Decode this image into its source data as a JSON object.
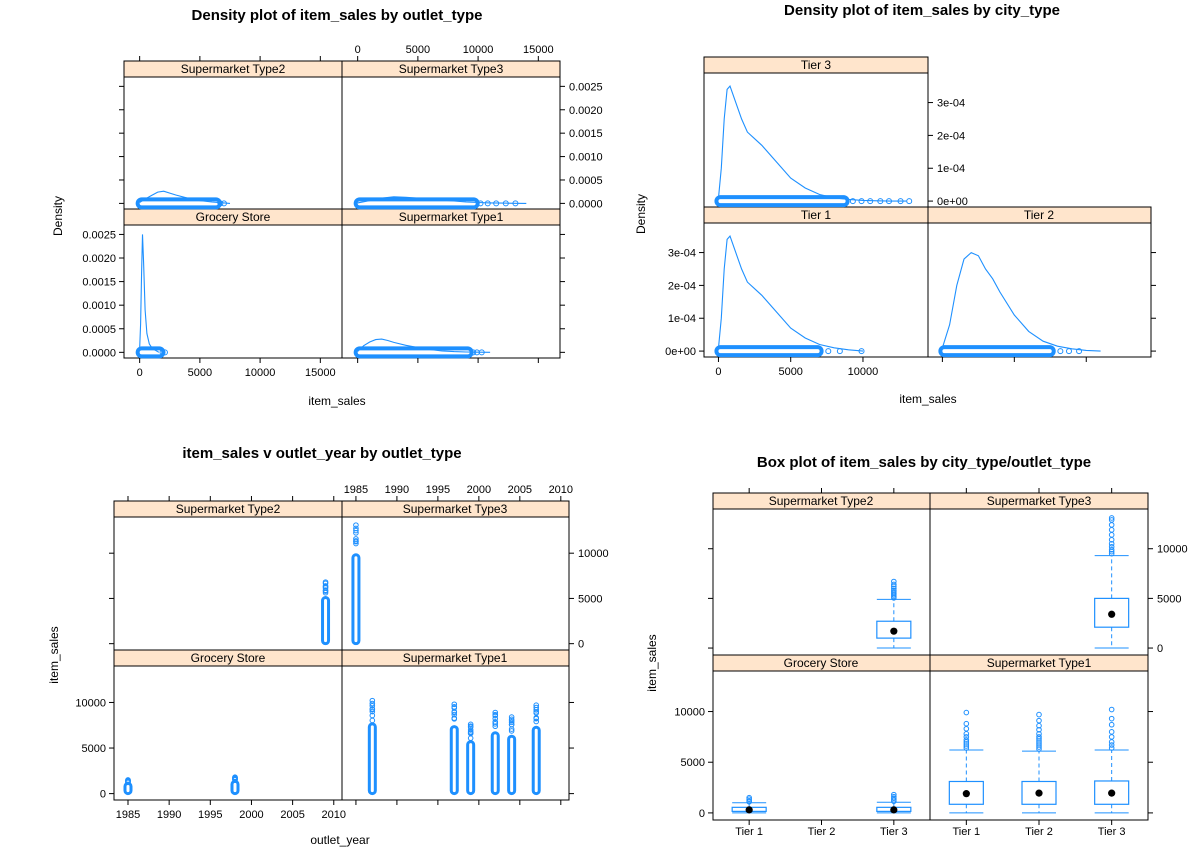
{
  "colors": {
    "series": "#1e90ff",
    "strip_bg": "#ffe5cc",
    "axis": "#000000"
  },
  "chart_data": [
    {
      "type": "area",
      "title": "Density plot of item_sales by outlet_type",
      "xlabel": "item_sales",
      "ylabel": "Density",
      "xlim": [
        -1300,
        16800
      ],
      "ylim": [
        -0.00012,
        0.0027
      ],
      "xticks": [
        0,
        5000,
        10000,
        15000
      ],
      "xtick_labels": [
        "0",
        "5000",
        "10000",
        "15000"
      ],
      "yticks": [
        0,
        0.0005,
        0.001,
        0.0015,
        0.002,
        0.0025
      ],
      "ytick_labels": [
        "0.0000",
        "0.0005",
        "0.0010",
        "0.0015",
        "0.0020",
        "0.0025"
      ],
      "panels": [
        {
          "strip": "Grocery Store",
          "curve_x": [
            0,
            80,
            160,
            240,
            330,
            450,
            600,
            800,
            1000,
            1200,
            1400,
            1600
          ],
          "curve_y": [
            0.0001,
            0.0006,
            0.0017,
            0.0025,
            0.0019,
            0.0009,
            0.0004,
            0.00018,
            0.0001,
            6e-05,
            3e-05,
            0
          ],
          "rug_min": 0,
          "rug_max": 1800,
          "outliers": [
            1900,
            2100
          ]
        },
        {
          "strip": "Supermarket Type1",
          "curve_x": [
            0,
            500,
            1000,
            1500,
            2000,
            2500,
            3000,
            4000,
            5000,
            6000,
            7000,
            8000,
            9000,
            10000,
            11000
          ],
          "curve_y": [
            2e-05,
            0.00014,
            0.00022,
            0.00027,
            0.00028,
            0.00025,
            0.00021,
            0.00015,
            0.0001,
            6e-05,
            3e-05,
            1.5e-05,
            7e-06,
            3e-06,
            0
          ],
          "rug_min": 0,
          "rug_max": 9300,
          "outliers": [
            9600,
            9900,
            10300
          ]
        },
        {
          "strip": "Supermarket Type2",
          "curve_x": [
            0,
            500,
            1000,
            1500,
            2000,
            2500,
            3000,
            4000,
            5000,
            6000,
            7000,
            7500
          ],
          "curve_y": [
            2e-05,
            0.0001,
            0.00017,
            0.00024,
            0.00026,
            0.00022,
            0.00018,
            0.00011,
            6e-05,
            3e-05,
            1e-05,
            0
          ],
          "rug_min": 0,
          "rug_max": 6500,
          "outliers": [
            6700,
            7000
          ]
        },
        {
          "strip": "Supermarket Type3",
          "curve_x": [
            0,
            1000,
            2000,
            3000,
            4000,
            5000,
            6000,
            7000,
            8000,
            9000,
            10000,
            11000,
            12000,
            13000,
            14000
          ],
          "curve_y": [
            1e-05,
            6e-05,
            0.00011,
            0.00014,
            0.00013,
            0.00011,
            9e-05,
            7e-05,
            5e-05,
            3e-05,
            1.8e-05,
            1e-05,
            5e-06,
            2e-06,
            0
          ],
          "rug_min": 0,
          "rug_max": 9800,
          "outliers": [
            10200,
            10800,
            11500,
            12300,
            13100
          ]
        }
      ]
    },
    {
      "type": "area",
      "title": "Density plot of item_sales by city_type",
      "xlabel": "item_sales",
      "ylabel": "Density",
      "xlim": [
        -1000,
        14500
      ],
      "ylim": [
        -1.8e-05,
        0.00039
      ],
      "xticks": [
        0,
        5000,
        10000
      ],
      "xtick_labels": [
        "0",
        "5000",
        "10000"
      ],
      "yticks": [
        0,
        0.0001,
        0.0002,
        0.0003
      ],
      "ytick_labels": [
        "0e+00",
        "1e-04",
        "2e-04",
        "3e-04"
      ],
      "panels": [
        {
          "strip": "Tier 1",
          "curve_x": [
            0,
            200,
            400,
            600,
            800,
            1200,
            1600,
            2000,
            2500,
            3000,
            4000,
            5000,
            6000,
            7000,
            8000,
            9000,
            10000
          ],
          "curve_y": [
            1e-05,
            0.0001,
            0.00025,
            0.00034,
            0.00035,
            0.0003,
            0.00025,
            0.00021,
            0.00019,
            0.00017,
            0.00012,
            7e-05,
            4e-05,
            2e-05,
            1e-05,
            4e-06,
            0
          ],
          "rug_min": 0,
          "rug_max": 7000,
          "outliers": [
            7600,
            8400,
            9900
          ]
        },
        {
          "strip": "Tier 2",
          "curve_x": [
            0,
            500,
            1000,
            1500,
            2000,
            2500,
            3000,
            3500,
            4000,
            5000,
            6000,
            7000,
            8000,
            9000,
            10000,
            11000
          ],
          "curve_y": [
            1e-05,
            8e-05,
            0.0002,
            0.00028,
            0.0003,
            0.00029,
            0.00025,
            0.00022,
            0.00018,
            0.00011,
            6e-05,
            3e-05,
            1.5e-05,
            7e-06,
            2e-06,
            0
          ],
          "rug_min": 0,
          "rug_max": 7600,
          "outliers": [
            8200,
            8800,
            9500
          ]
        },
        {
          "strip": "Tier 3",
          "curve_x": [
            0,
            200,
            400,
            600,
            800,
            1200,
            1600,
            2000,
            2500,
            3000,
            4000,
            5000,
            6000,
            7000,
            8000,
            9000,
            10000,
            11000,
            12000,
            13000
          ],
          "curve_y": [
            1e-05,
            0.0001,
            0.00025,
            0.00034,
            0.00035,
            0.0003,
            0.00025,
            0.00021,
            0.00019,
            0.00017,
            0.00012,
            7e-05,
            4e-05,
            2e-05,
            1e-05,
            5e-06,
            2e-06,
            1e-06,
            0,
            0
          ],
          "rug_min": 0,
          "rug_max": 8800,
          "outliers": [
            9300,
            9900,
            10500,
            11200,
            11800,
            12600,
            13200
          ]
        }
      ]
    },
    {
      "type": "scatter",
      "title": "item_sales v outlet_year by outlet_type",
      "xlabel": "outlet_year",
      "ylabel": "item_sales",
      "xlim": [
        1983.3,
        2011
      ],
      "ylim": [
        -700,
        14000
      ],
      "xticks": [
        1985,
        1990,
        1995,
        2000,
        2005,
        2010
      ],
      "xtick_labels": [
        "1985",
        "1990",
        "1995",
        "2000",
        "2005",
        "2010"
      ],
      "yticks": [
        0,
        5000,
        10000
      ],
      "ytick_labels": [
        "0",
        "5000",
        "10000"
      ],
      "panels": [
        {
          "strip": "Grocery Store",
          "columns": [
            {
              "x": 1985,
              "min": 0,
              "max": 1500
            },
            {
              "x": 1998,
              "min": 0,
              "max": 1800
            }
          ]
        },
        {
          "strip": "Supermarket Type1",
          "columns": [
            {
              "x": 1987,
              "min": 0,
              "max": 10200
            },
            {
              "x": 1997,
              "min": 0,
              "max": 9800
            },
            {
              "x": 1999,
              "min": 0,
              "max": 7600
            },
            {
              "x": 2002,
              "min": 0,
              "max": 8900
            },
            {
              "x": 2004,
              "min": 0,
              "max": 8400
            },
            {
              "x": 2007,
              "min": 0,
              "max": 9700
            }
          ]
        },
        {
          "strip": "Supermarket Type2",
          "columns": [
            {
              "x": 2009,
              "min": 0,
              "max": 6800
            }
          ]
        },
        {
          "strip": "Supermarket Type3",
          "columns": [
            {
              "x": 1985,
              "min": 0,
              "max": 13100
            }
          ]
        }
      ]
    },
    {
      "type": "box",
      "title": "Box plot of item_sales by city_type/outlet_type",
      "xlabel": "",
      "ylabel": "item_sales",
      "categories": [
        "Tier 1",
        "Tier 2",
        "Tier 3"
      ],
      "ylim": [
        -700,
        14000
      ],
      "yticks": [
        0,
        5000,
        10000
      ],
      "ytick_labels": [
        "0",
        "5000",
        "10000"
      ],
      "panels": [
        {
          "strip": "Grocery Store",
          "boxes": [
            {
              "cat": "Tier 1",
              "min": 0,
              "q1": 150,
              "median": 300,
              "q3": 550,
              "max": 1000,
              "outliers": [
                1100,
                1200,
                1350,
                1500
              ]
            },
            {
              "cat": "Tier 3",
              "min": 0,
              "q1": 150,
              "median": 300,
              "q3": 550,
              "max": 1050,
              "outliers": [
                1150,
                1300,
                1450,
                1600,
                1800
              ]
            }
          ]
        },
        {
          "strip": "Supermarket Type1",
          "boxes": [
            {
              "cat": "Tier 1",
              "min": 0,
              "q1": 850,
              "median": 1900,
              "q3": 3100,
              "max": 6200,
              "outliers": [
                6400,
                6600,
                6800,
                7000,
                7200,
                7500,
                7800,
                8300,
                8800,
                9900
              ]
            },
            {
              "cat": "Tier 2",
              "min": 0,
              "q1": 850,
              "median": 1950,
              "q3": 3100,
              "max": 6100,
              "outliers": [
                6300,
                6500,
                6700,
                6900,
                7100,
                7300,
                7500,
                7800,
                8200,
                8600,
                9100,
                9700
              ]
            },
            {
              "cat": "Tier 3",
              "min": 0,
              "q1": 850,
              "median": 1950,
              "q3": 3150,
              "max": 6200,
              "outliers": [
                6400,
                6700,
                7000,
                7500,
                8000,
                8700,
                9300,
                10200
              ]
            }
          ]
        },
        {
          "strip": "Supermarket Type2",
          "boxes": [
            {
              "cat": "Tier 3",
              "min": 0,
              "q1": 1000,
              "median": 1700,
              "q3": 2700,
              "max": 4900,
              "outliers": [
                5050,
                5200,
                5350,
                5500,
                5650,
                5800,
                6000,
                6200,
                6400,
                6700
              ]
            }
          ]
        },
        {
          "strip": "Supermarket Type3",
          "boxes": [
            {
              "cat": "Tier 3",
              "min": 0,
              "q1": 2100,
              "median": 3400,
              "q3": 5000,
              "max": 9300,
              "outliers": [
                9500,
                9700,
                9900,
                10200,
                10500,
                10900,
                11400,
                11900,
                12400,
                12900,
                13100
              ]
            }
          ]
        }
      ]
    }
  ]
}
